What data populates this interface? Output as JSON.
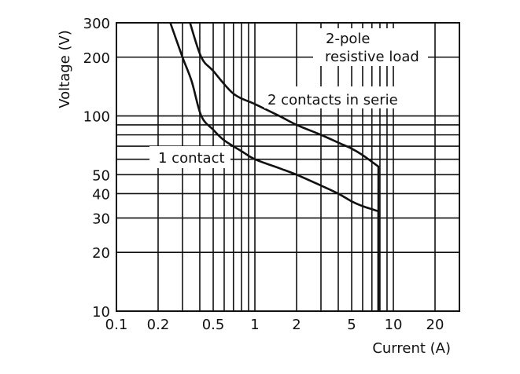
{
  "chart_data": {
    "type": "line",
    "title": "",
    "xlabel": "Current (A)",
    "ylabel": "Voltage (V)",
    "xscale": "log",
    "yscale": "log",
    "xlim": [
      0.1,
      30
    ],
    "ylim": [
      10,
      300
    ],
    "grid": true,
    "x_ticks": [
      0.1,
      0.2,
      0.5,
      1,
      2,
      5,
      10,
      20
    ],
    "x_tick_labels": [
      "0.1",
      "0.2",
      "0.5",
      "1",
      "2",
      "5",
      "10",
      "20"
    ],
    "y_ticks": [
      10,
      20,
      30,
      40,
      50,
      100,
      200,
      300
    ],
    "y_tick_labels": [
      "10",
      "20",
      "30",
      "40",
      "50",
      "100",
      "200",
      "300"
    ],
    "x_gridlines": [
      0.2,
      0.3,
      0.4,
      0.5,
      0.6,
      0.7,
      0.8,
      0.9,
      1,
      2,
      3,
      4,
      5,
      6,
      7,
      8,
      9,
      10,
      20
    ],
    "y_gridlines": [
      20,
      30,
      40,
      50,
      60,
      70,
      80,
      90,
      100,
      200
    ],
    "annotations": [
      "2-pole",
      "resistive load"
    ],
    "line_color": "#111111",
    "series": [
      {
        "name": "1 contact",
        "points": [
          [
            0.245,
            300
          ],
          [
            0.3,
            200
          ],
          [
            0.35,
            150
          ],
          [
            0.41,
            100
          ],
          [
            0.5,
            85
          ],
          [
            0.6,
            75
          ],
          [
            0.8,
            66
          ],
          [
            1,
            60
          ],
          [
            1.5,
            54
          ],
          [
            2,
            50
          ],
          [
            3,
            44
          ],
          [
            4,
            40
          ],
          [
            5,
            36.5
          ],
          [
            6,
            34.5
          ],
          [
            7.8,
            32.5
          ],
          [
            7.8,
            10
          ]
        ]
      },
      {
        "name": "2 contacts in serie",
        "points": [
          [
            0.34,
            300
          ],
          [
            0.41,
            200
          ],
          [
            0.5,
            170
          ],
          [
            0.7,
            130
          ],
          [
            1,
            115
          ],
          [
            1.5,
            100
          ],
          [
            2,
            90
          ],
          [
            3,
            80
          ],
          [
            4,
            73
          ],
          [
            5,
            68
          ],
          [
            6,
            63
          ],
          [
            7.8,
            55
          ],
          [
            7.8,
            10
          ]
        ]
      }
    ]
  }
}
